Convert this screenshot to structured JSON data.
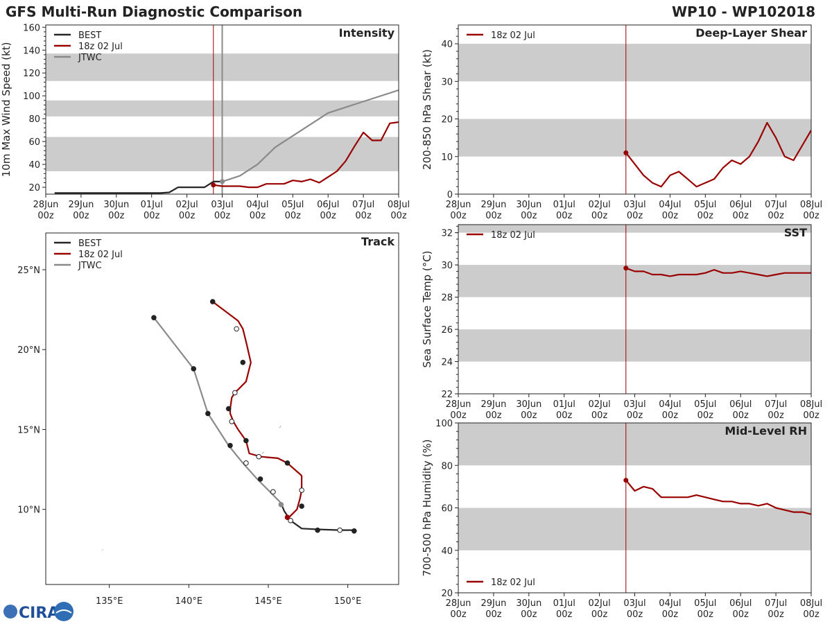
{
  "header": {
    "title": "GFS Multi-Run Diagnostic Comparison",
    "storm_id": "WP10 - WP102018"
  },
  "colors": {
    "best": "#262626",
    "gfs": "#990000",
    "jtwc": "#7a7a7a",
    "band": "#cccccc",
    "jtwc_line": "#8a8a8a"
  },
  "time_axis": {
    "ticks_top": [
      "28Jun",
      "29Jun",
      "30Jun",
      "01Jul",
      "02Jul",
      "03Jul",
      "04Jul",
      "05Jul",
      "06Jul",
      "07Jul",
      "08Jul"
    ],
    "ticks_bottom": [
      "00z",
      "00z",
      "00z",
      "00z",
      "00z",
      "00z",
      "00z",
      "00z",
      "00z",
      "00z",
      "00z"
    ],
    "init_day": 4.75,
    "jtwc_day": 5.0
  },
  "logo": {
    "text": "CIRA"
  },
  "chart_data": [
    {
      "id": "intensity",
      "type": "line",
      "title": "Intensity",
      "ylabel": "10m Max Wind Speed (kt)",
      "xlabel": "",
      "xlim": [
        0,
        10
      ],
      "ylim": [
        14,
        162
      ],
      "yticks": [
        20,
        40,
        60,
        80,
        100,
        120,
        140,
        160
      ],
      "bands": [
        [
          34,
          64
        ],
        [
          82,
          96
        ],
        [
          113,
          137
        ]
      ],
      "legend": [
        "BEST",
        "18z 02 Jul",
        "JTWC"
      ],
      "series": [
        {
          "name": "BEST",
          "x": [
            0.25,
            0.5,
            0.75,
            1.0,
            1.25,
            1.5,
            1.75,
            2.0,
            2.25,
            2.5,
            2.75,
            3.0,
            3.25,
            3.5,
            3.75,
            4.0,
            4.25,
            4.5,
            4.75,
            5.0
          ],
          "y": [
            15,
            15,
            15,
            15,
            15,
            15,
            15,
            15,
            15,
            15,
            15,
            15,
            15,
            15.5,
            20,
            20,
            20,
            20,
            25,
            25
          ]
        },
        {
          "name": "18z 02 Jul",
          "x": [
            4.75,
            5.0,
            5.25,
            5.5,
            5.75,
            6.0,
            6.25,
            6.5,
            6.75,
            7.0,
            7.25,
            7.5,
            7.75,
            8.0,
            8.25,
            8.5,
            8.75,
            9.0,
            9.25,
            9.5,
            9.75,
            10.0
          ],
          "y": [
            22,
            21,
            21,
            21,
            20,
            20,
            23,
            23,
            23,
            26,
            25,
            27,
            24,
            29,
            34,
            43,
            56,
            68,
            61,
            61,
            76,
            77
          ]
        },
        {
          "name": "JTWC",
          "x": [
            5.0,
            5.5,
            6.0,
            6.5,
            7.0,
            8.0,
            10.0
          ],
          "y": [
            25,
            30,
            40,
            55,
            65,
            85,
            105
          ]
        }
      ]
    },
    {
      "id": "shear",
      "type": "line",
      "title": "Deep-Layer Shear",
      "ylabel": "200-850 hPa Shear (kt)",
      "xlabel": "",
      "xlim": [
        0,
        10
      ],
      "ylim": [
        0,
        45
      ],
      "yticks": [
        0,
        10,
        20,
        30,
        40
      ],
      "bands": [
        [
          10,
          20
        ],
        [
          30,
          40
        ]
      ],
      "legend": [
        "18z 02 Jul"
      ],
      "series": [
        {
          "name": "18z 02 Jul",
          "x": [
            4.75,
            5.0,
            5.25,
            5.5,
            5.75,
            6.0,
            6.25,
            6.5,
            6.75,
            7.0,
            7.25,
            7.5,
            7.75,
            8.0,
            8.25,
            8.5,
            8.75,
            9.0,
            9.25,
            9.5,
            9.75,
            10.0
          ],
          "y": [
            11,
            8,
            5,
            3,
            2,
            5,
            6,
            4,
            2,
            3,
            4,
            7,
            9,
            8,
            10,
            14,
            19,
            15,
            10,
            9,
            13,
            17
          ]
        }
      ]
    },
    {
      "id": "sst",
      "type": "line",
      "title": "SST",
      "ylabel": "Sea Surface Temp (°C)",
      "xlabel": "",
      "xlim": [
        0,
        10
      ],
      "ylim": [
        22,
        32.5
      ],
      "yticks": [
        22,
        24,
        26,
        28,
        30,
        32
      ],
      "bands": [
        [
          24,
          26
        ],
        [
          28,
          30
        ],
        [
          32,
          34
        ]
      ],
      "legend": [
        "18z 02 Jul"
      ],
      "series": [
        {
          "name": "18z 02 Jul",
          "x": [
            4.75,
            5.0,
            5.25,
            5.5,
            5.75,
            6.0,
            6.25,
            6.5,
            6.75,
            7.0,
            7.25,
            7.5,
            7.75,
            8.0,
            8.25,
            8.5,
            8.75,
            9.0,
            9.25,
            9.5,
            9.75,
            10.0
          ],
          "y": [
            29.8,
            29.6,
            29.6,
            29.4,
            29.4,
            29.3,
            29.4,
            29.4,
            29.4,
            29.5,
            29.7,
            29.5,
            29.5,
            29.6,
            29.5,
            29.4,
            29.3,
            29.4,
            29.5,
            29.5,
            29.5,
            29.5
          ]
        }
      ]
    },
    {
      "id": "rh",
      "type": "line",
      "title": "Mid-Level RH",
      "ylabel": "700-500 hPa Humidity (%)",
      "xlabel": "",
      "xlim": [
        0,
        10
      ],
      "ylim": [
        20,
        100
      ],
      "yticks": [
        20,
        40,
        60,
        80,
        100
      ],
      "bands": [
        [
          40,
          60
        ],
        [
          80,
          100
        ]
      ],
      "legend": [
        "18z 02 Jul"
      ],
      "series": [
        {
          "name": "18z 02 Jul",
          "x": [
            4.75,
            5.0,
            5.25,
            5.5,
            5.75,
            6.0,
            6.25,
            6.5,
            6.75,
            7.0,
            7.25,
            7.5,
            7.75,
            8.0,
            8.25,
            8.5,
            8.75,
            9.0,
            9.25,
            9.5,
            9.75,
            10.0
          ],
          "y": [
            73,
            68,
            70,
            69,
            65,
            65,
            65,
            65,
            66,
            65,
            64,
            63,
            63,
            62,
            62,
            61,
            62,
            60,
            59,
            58,
            58,
            57
          ]
        }
      ]
    },
    {
      "id": "track",
      "type": "scatter",
      "title": "Track",
      "xlabel": "",
      "ylabel": "",
      "xlim": [
        131,
        153.2
      ],
      "ylim": [
        5.3,
        27.3
      ],
      "xticks": [
        135,
        140,
        145,
        150
      ],
      "xtick_labels": [
        "135°E",
        "140°E",
        "145°E",
        "150°E"
      ],
      "yticks": [
        10,
        15,
        20,
        25
      ],
      "ytick_labels": [
        "10°N",
        "15°N",
        "20°N",
        "25°N"
      ],
      "legend": [
        "BEST",
        "18z 02 Jul",
        "JTWC"
      ],
      "series": [
        {
          "name": "BEST",
          "lon": [
            150.4,
            149.5,
            148.1,
            147.1,
            146.4,
            146.0,
            145.8
          ],
          "lat": [
            8.7,
            8.7,
            8.75,
            8.8,
            9.3,
            9.9,
            10.4
          ],
          "filled": [
            true,
            false,
            true,
            false,
            false,
            false,
            false
          ]
        },
        {
          "name": "18z 02 Jul",
          "lon": [
            146.3,
            146.8,
            147.0,
            147.1,
            147.1,
            147.0,
            146.2,
            145.6,
            144.5,
            143.8,
            143.6,
            143.1,
            142.8,
            142.6,
            142.6,
            142.7,
            142.9,
            143.6,
            143.9,
            143.6,
            143.4,
            143.1,
            141.5
          ],
          "lat": [
            9.5,
            10.0,
            10.7,
            11.2,
            12.1,
            12.2,
            12.9,
            13.2,
            13.3,
            13.5,
            14.3,
            15.0,
            15.5,
            16.0,
            16.3,
            17.0,
            17.3,
            18.0,
            19.2,
            20.5,
            21.3,
            21.8,
            23.0
          ],
          "filled": [
            true,
            false,
            false,
            false,
            false,
            true,
            true,
            false,
            false,
            false,
            true,
            false,
            false,
            false,
            true,
            false,
            false,
            false,
            true,
            false,
            false,
            false,
            true
          ]
        },
        {
          "name": "JTWC",
          "lon": [
            145.8,
            145.1,
            144.3,
            143.4,
            142.5,
            141.2,
            140.3,
            137.8
          ],
          "lat": [
            10.4,
            11.1,
            11.9,
            12.9,
            14.0,
            16.0,
            18.8,
            22.0
          ],
          "filled": [
            true,
            false,
            true,
            false,
            true,
            true,
            true,
            true
          ]
        }
      ],
      "markers": [
        {
          "lon": 150.4,
          "lat": 8.65,
          "style": "filled",
          "series": "BEST"
        },
        {
          "lon": 149.5,
          "lat": 8.7,
          "style": "open",
          "series": "BEST"
        },
        {
          "lon": 148.1,
          "lat": 8.7,
          "style": "filled",
          "series": "BEST"
        },
        {
          "lon": 147.1,
          "lat": 10.2,
          "style": "filled",
          "series": "18z 02 Jul"
        },
        {
          "lon": 147.1,
          "lat": 11.2,
          "style": "open",
          "series": "18z 02 Jul"
        },
        {
          "lon": 146.2,
          "lat": 12.9,
          "style": "filled",
          "series": "18z 02 Jul"
        },
        {
          "lon": 144.4,
          "lat": 13.3,
          "style": "open",
          "series": "18z 02 Jul"
        },
        {
          "lon": 143.6,
          "lat": 14.3,
          "style": "filled",
          "series": "18z 02 Jul"
        },
        {
          "lon": 142.7,
          "lat": 15.5,
          "style": "open",
          "series": "18z 02 Jul"
        },
        {
          "lon": 142.5,
          "lat": 16.3,
          "style": "filled",
          "series": "18z 02 Jul"
        },
        {
          "lon": 142.9,
          "lat": 17.3,
          "style": "open",
          "series": "18z 02 Jul"
        },
        {
          "lon": 143.4,
          "lat": 19.2,
          "style": "filled",
          "series": "18z 02 Jul"
        },
        {
          "lon": 143.0,
          "lat": 21.3,
          "style": "open",
          "series": "18z 02 Jul"
        },
        {
          "lon": 141.5,
          "lat": 23.0,
          "style": "filled",
          "series": "18z 02 Jul"
        },
        {
          "lon": 146.4,
          "lat": 9.3,
          "style": "open",
          "series": "BEST"
        },
        {
          "lon": 146.2,
          "lat": 9.5,
          "style": "filled",
          "series": "18z 02 Jul"
        },
        {
          "lon": 145.8,
          "lat": 10.3,
          "style": "filled",
          "series": "JTWC"
        },
        {
          "lon": 145.3,
          "lat": 11.1,
          "style": "open",
          "series": "JTWC"
        },
        {
          "lon": 144.5,
          "lat": 11.9,
          "style": "filled",
          "series": "JTWC"
        },
        {
          "lon": 143.6,
          "lat": 12.9,
          "style": "open",
          "series": "JTWC"
        },
        {
          "lon": 142.6,
          "lat": 14.0,
          "style": "filled",
          "series": "JTWC"
        },
        {
          "lon": 141.2,
          "lat": 16.0,
          "style": "filled",
          "series": "JTWC"
        },
        {
          "lon": 140.3,
          "lat": 18.8,
          "style": "filled",
          "series": "JTWC"
        },
        {
          "lon": 137.8,
          "lat": 22.0,
          "style": "filled",
          "series": "JTWC"
        }
      ]
    }
  ]
}
